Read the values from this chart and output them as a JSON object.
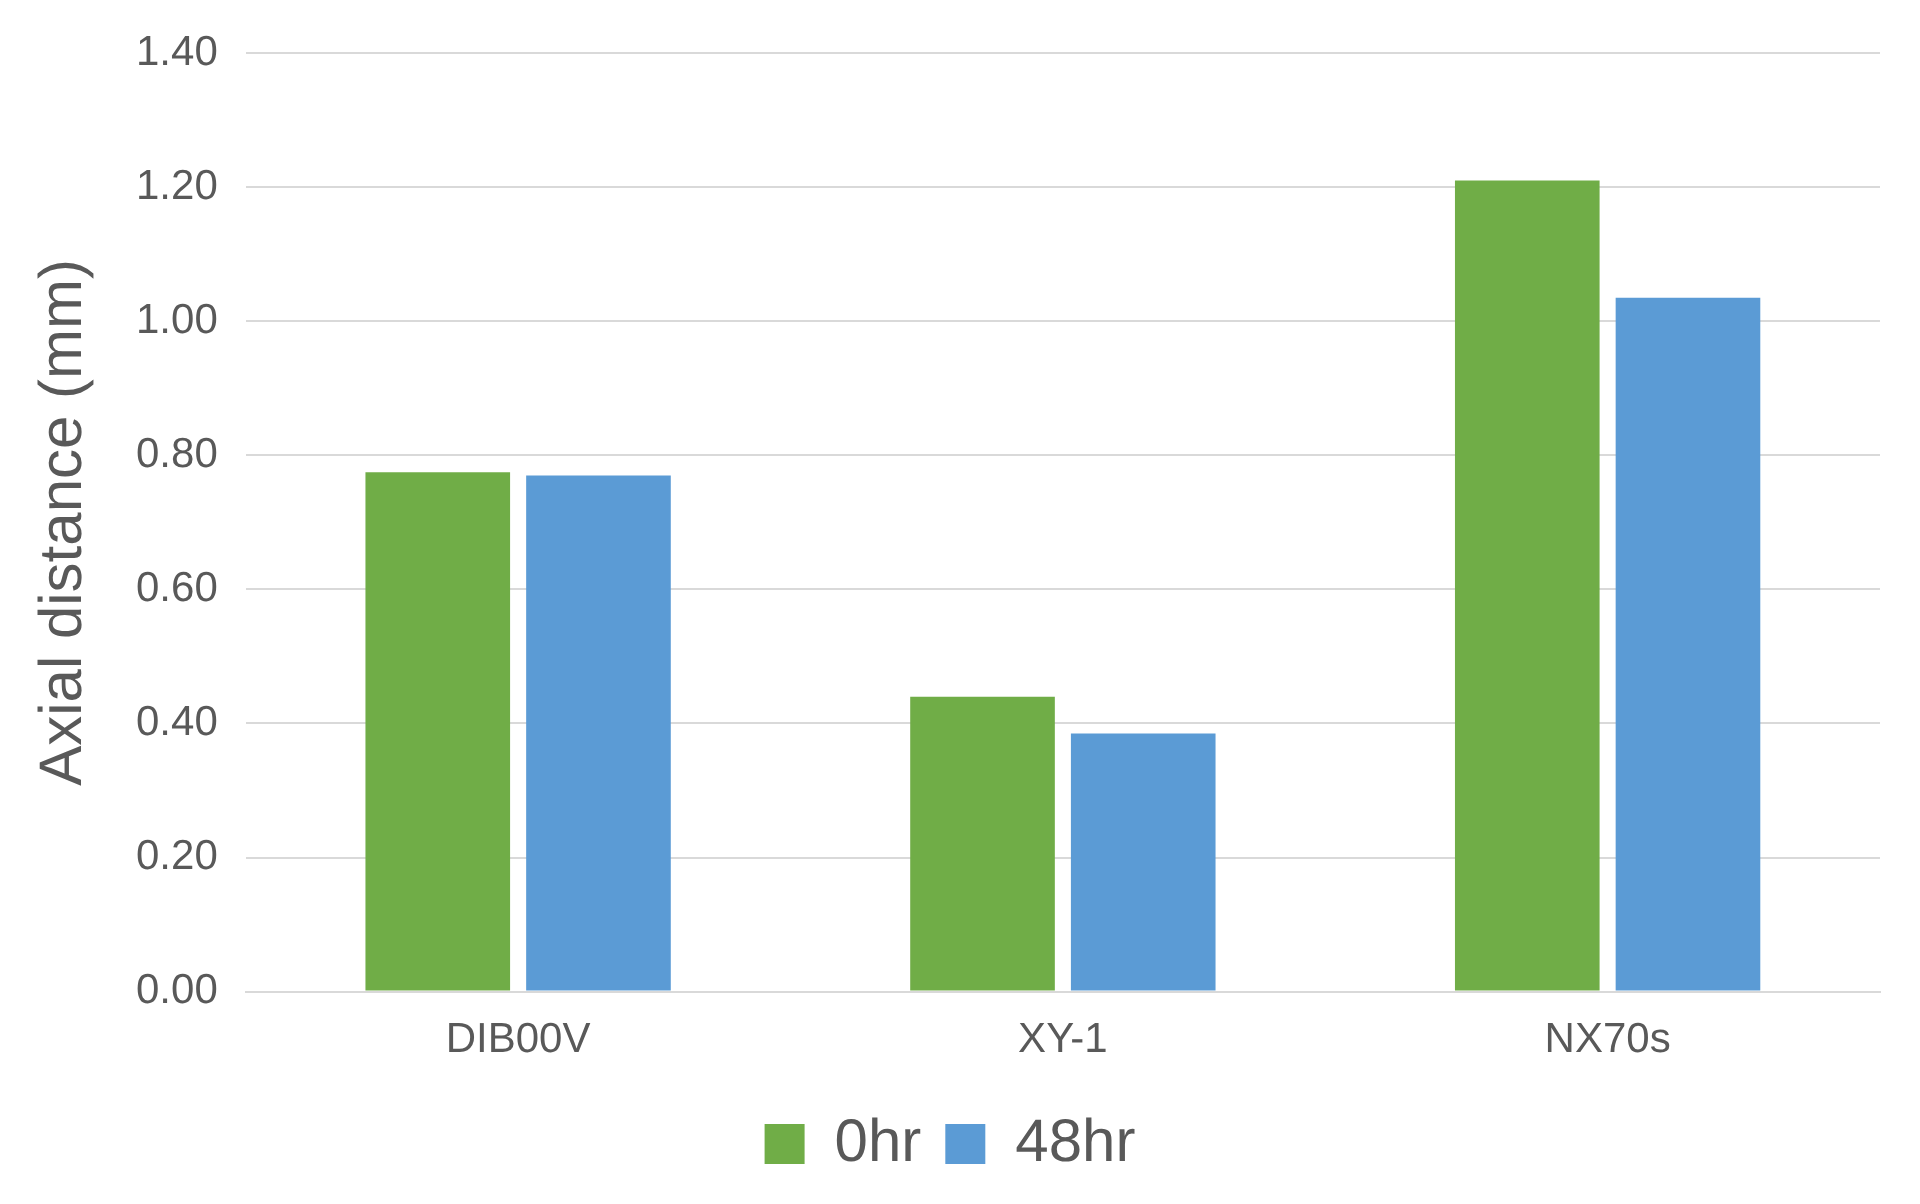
{
  "chart_data": {
    "type": "bar",
    "ylabel": "Axial distance (mm)",
    "categories": [
      "DIB00V",
      "XY-1",
      "NX70s"
    ],
    "series": [
      {
        "name": "0hr",
        "color": "#70ad47",
        "values": [
          0.775,
          0.44,
          1.21
        ]
      },
      {
        "name": "48hr",
        "color": "#5b9bd5",
        "values": [
          0.77,
          0.385,
          1.035
        ]
      }
    ],
    "ylim": [
      0,
      1.4
    ],
    "yticks": [
      {
        "value": 0,
        "label": "0.00"
      },
      {
        "value": 0.2,
        "label": "0.20"
      },
      {
        "value": 0.4,
        "label": "0.40"
      },
      {
        "value": 0.6,
        "label": "0.60"
      },
      {
        "value": 0.8,
        "label": "0.80"
      },
      {
        "value": 1.0,
        "label": "1.00"
      },
      {
        "value": 1.2,
        "label": "1.20"
      },
      {
        "value": 1.4,
        "label": "1.40"
      }
    ],
    "grid": "y",
    "legend": "bottom"
  }
}
